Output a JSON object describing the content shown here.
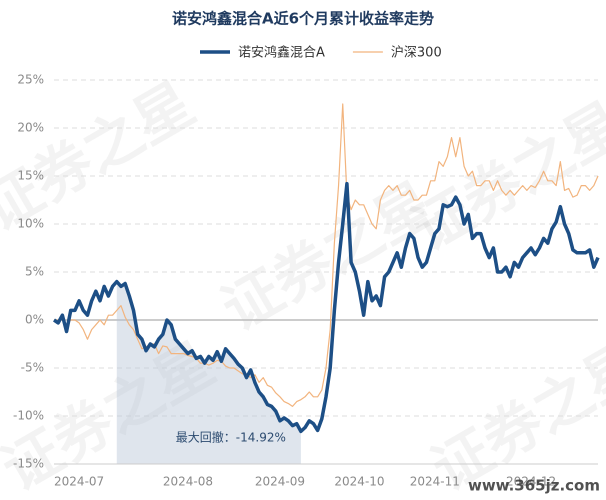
{
  "chart_data": {
    "type": "line",
    "title": "诺安鸿鑫混合A近6个月累计收益率走势",
    "categories": [
      null,
      null,
      null,
      null,
      null,
      null,
      "2024-07",
      null,
      null,
      null,
      null,
      null,
      null,
      null,
      null,
      null,
      null,
      null,
      null,
      null,
      null,
      null,
      null,
      null,
      null,
      null,
      null,
      null,
      null,
      null,
      null,
      null,
      "2024-08",
      null,
      null,
      null,
      null,
      null,
      null,
      null,
      null,
      null,
      null,
      null,
      null,
      null,
      null,
      null,
      null,
      null,
      null,
      null,
      null,
      null,
      "2024-09",
      null,
      null,
      null,
      null,
      null,
      null,
      null,
      null,
      null,
      null,
      null,
      null,
      null,
      null,
      null,
      null,
      null,
      null,
      "2024-10",
      null,
      null,
      null,
      null,
      null,
      null,
      null,
      null,
      null,
      null,
      null,
      null,
      null,
      null,
      null,
      null,
      null,
      "2024-11",
      null,
      null,
      null,
      null,
      null,
      null,
      null,
      null,
      null,
      null,
      null,
      null,
      null,
      null,
      null,
      null,
      null,
      null,
      null,
      null,
      null,
      null,
      "2024-12",
      null,
      null,
      null,
      null,
      null,
      null,
      null,
      null,
      null,
      null,
      null,
      null,
      null,
      null,
      null,
      null
    ],
    "series": [
      {
        "name": "诺安鸿鑫混合A",
        "color": "#1d4f86",
        "width": 3.5,
        "values": [
          0,
          -0.3,
          0.5,
          -1.2,
          1,
          1,
          2,
          1,
          0.5,
          2,
          3,
          2,
          3.5,
          2.5,
          3.5,
          4,
          3.5,
          3.8,
          2.5,
          1,
          -1.5,
          -2,
          -3.2,
          -2.5,
          -2.8,
          -2,
          -1.5,
          0,
          -0.5,
          -2,
          -2.5,
          -3,
          -3.5,
          -3.2,
          -4,
          -3.8,
          -4.5,
          -3.8,
          -4.2,
          -3.3,
          -4.3,
          -3,
          -3.5,
          -4,
          -4.6,
          -5,
          -6,
          -5.2,
          -6.5,
          -7.5,
          -8,
          -8.8,
          -9,
          -9.5,
          -10.5,
          -10.2,
          -10.5,
          -11,
          -10.8,
          -11.6,
          -11.2,
          -10.5,
          -10.8,
          -11.5,
          -10.3,
          -8,
          -5,
          1,
          6,
          10,
          14.2,
          6,
          5,
          3,
          0.5,
          4,
          2,
          2.5,
          1.5,
          4.5,
          5,
          6,
          7,
          5.5,
          7.5,
          9,
          8.5,
          6.5,
          5.5,
          6,
          7.5,
          9,
          9.5,
          12,
          11.8,
          12,
          12.8,
          12,
          10,
          11,
          8.5,
          9,
          9,
          7.5,
          6.5,
          7.5,
          5,
          5,
          5.5,
          4.5,
          6,
          5.5,
          6.5,
          7,
          7.5,
          6.8,
          7.5,
          8.5,
          8,
          9.5,
          10.2,
          11.8,
          10,
          9,
          7.3,
          7,
          7,
          7,
          7.3,
          5.5,
          6.5
        ]
      },
      {
        "name": "沪深300",
        "color": "#f2b47e",
        "width": 1.2,
        "values": [
          0,
          0,
          0,
          -0.5,
          0,
          0,
          -0.3,
          -1,
          -2,
          -1,
          -0.5,
          0,
          -0.5,
          0.5,
          0.5,
          1,
          1.5,
          0.3,
          -0.5,
          -1,
          -2,
          -3,
          -2.8,
          -2.5,
          -2.5,
          -3.5,
          -2.7,
          -2.8,
          -3.5,
          -3.5,
          -3.5,
          -3.5,
          -3.7,
          -3.8,
          -4,
          -4.5,
          -4.5,
          -4.7,
          -4.5,
          -4.2,
          -4.3,
          -4.8,
          -5,
          -5,
          -5.3,
          -5.6,
          -5.7,
          -6,
          -5.7,
          -6.5,
          -6,
          -6.8,
          -7,
          -7.6,
          -8,
          -8.5,
          -8.7,
          -9,
          -8.5,
          -8.3,
          -8,
          -7.5,
          -8,
          -8,
          -7.3,
          -5,
          -1,
          8,
          14,
          22.5,
          13,
          11.5,
          12.5,
          12,
          12,
          11,
          10,
          9.5,
          12.5,
          13.5,
          14,
          13.5,
          14,
          13,
          13,
          13.5,
          12.5,
          12.5,
          13,
          13,
          14.5,
          14.5,
          16.5,
          16,
          17,
          19,
          17,
          19,
          16,
          15,
          15.5,
          14,
          14,
          14.5,
          14.5,
          13.5,
          14.5,
          13.5,
          13,
          13.5,
          13,
          13.5,
          14,
          13.5,
          14,
          13.8,
          14.5,
          15.5,
          14.5,
          14.5,
          14,
          16.5,
          13.5,
          13.7,
          12.8,
          13,
          14,
          14,
          13.5,
          14,
          15
        ]
      }
    ],
    "ylim": [
      -15,
      25
    ],
    "yticks": [
      {
        "value": 25,
        "label": "25%"
      },
      {
        "value": 20,
        "label": "20%"
      },
      {
        "value": 15,
        "label": "15%"
      },
      {
        "value": 10,
        "label": "10%"
      },
      {
        "value": 5,
        "label": "5%"
      },
      {
        "value": 0,
        "label": "0%"
      },
      {
        "value": -5,
        "label": "-5%"
      },
      {
        "value": -10,
        "label": "-10%"
      },
      {
        "value": -15,
        "label": "-15%"
      }
    ],
    "grid": true,
    "annotation": "最大回撤：-14.92%",
    "watermark": "证券之星",
    "site": "www.365jz.com"
  }
}
